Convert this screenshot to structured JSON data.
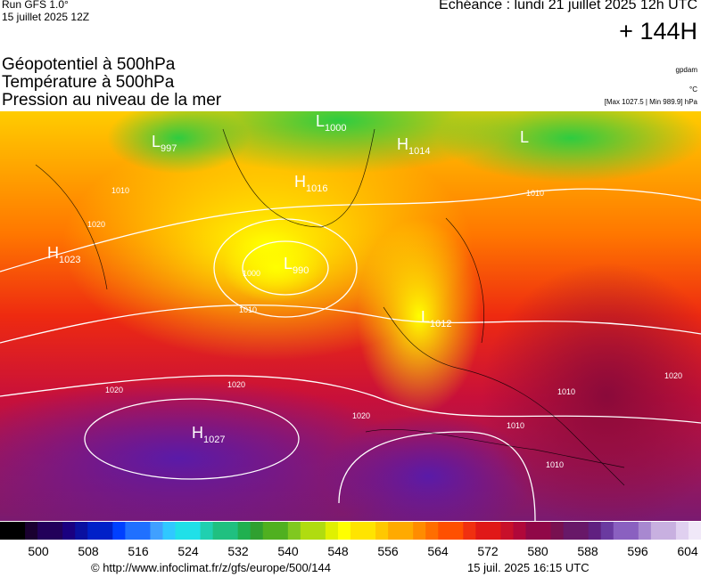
{
  "header": {
    "run": "Run GFS 1.0°",
    "run_date": "15 juillet 2025 12Z",
    "forecast": "Echéance : lundi 21 juillet 2025 12h UTC",
    "lead": "+ 144H"
  },
  "fields": [
    "Géopotentiel à 500hPa",
    "Température à 500hPa",
    "Pression au niveau de la mer"
  ],
  "units": [
    "gpdam",
    "°C",
    "[Max 1027.5 | Min 989.9] hPa"
  ],
  "pressure_centers": [
    {
      "type": "L",
      "value": "997"
    },
    {
      "type": "L",
      "value": "1000"
    },
    {
      "type": "H",
      "value": "1014"
    },
    {
      "type": "L"
    },
    {
      "type": "H",
      "value": "1016"
    },
    {
      "type": "H",
      "value": "1023"
    },
    {
      "type": "L",
      "value": "990"
    },
    {
      "type": "L",
      "value": "1012"
    },
    {
      "type": "H",
      "value": "1027"
    }
  ],
  "isobar_labels": [
    "1010",
    "1020",
    "1000",
    "1010",
    "1010",
    "1020",
    "1020",
    "1020",
    "1010",
    "1010",
    "1010",
    "1020"
  ],
  "colorbar": {
    "ticks": [
      500,
      508,
      516,
      524,
      532,
      540,
      548,
      556,
      564,
      572,
      580,
      588,
      596,
      604
    ]
  },
  "footer": {
    "url": "© http://www.infoclimat.fr/z/gfs/europe/500/144",
    "timestamp": "15 juil. 2025 16:15 UTC"
  }
}
